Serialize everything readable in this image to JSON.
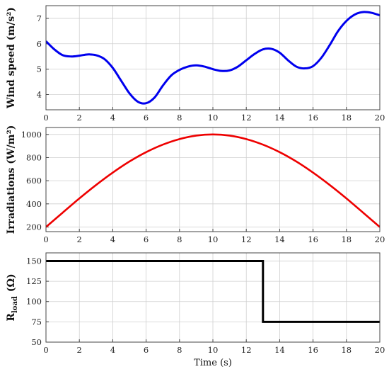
{
  "chart_data": [
    {
      "type": "line",
      "ylabel": "Wind speed (m/s²)",
      "xlabel": "",
      "xlim": [
        0,
        20
      ],
      "ylim": [
        3.4,
        7.5
      ],
      "xticks": [
        "0",
        "2",
        "4",
        "6",
        "8",
        "10",
        "12",
        "14",
        "16",
        "18",
        "20"
      ],
      "yticks": [
        "4",
        "5",
        "6",
        "7"
      ],
      "grid": true,
      "series": [
        {
          "color": "#0000ee",
          "x": [
            0,
            0.5,
            1,
            1.5,
            2,
            2.5,
            3,
            3.5,
            4,
            4.5,
            5,
            5.5,
            6,
            6.5,
            7,
            7.5,
            8,
            8.5,
            9,
            9.5,
            10,
            10.5,
            11,
            11.5,
            12,
            12.5,
            13,
            13.5,
            14,
            14.5,
            15,
            15.5,
            16,
            16.5,
            17,
            17.5,
            18,
            18.5,
            19,
            19.5,
            20
          ],
          "y": [
            6.1,
            5.78,
            5.55,
            5.5,
            5.53,
            5.58,
            5.55,
            5.4,
            5.05,
            4.55,
            4.05,
            3.72,
            3.66,
            3.88,
            4.35,
            4.75,
            4.97,
            5.1,
            5.15,
            5.1,
            5.0,
            4.93,
            4.95,
            5.1,
            5.35,
            5.6,
            5.78,
            5.8,
            5.65,
            5.35,
            5.1,
            5.03,
            5.12,
            5.45,
            5.95,
            6.5,
            6.9,
            7.15,
            7.25,
            7.22,
            7.12
          ]
        }
      ]
    },
    {
      "type": "line",
      "ylabel": "Irradiations (W/m²)",
      "xlabel": "",
      "xlim": [
        0,
        20
      ],
      "ylim": [
        160,
        1060
      ],
      "xticks": [
        "0",
        "2",
        "4",
        "6",
        "8",
        "10",
        "12",
        "14",
        "16",
        "18",
        "20"
      ],
      "yticks": [
        "200",
        "400",
        "600",
        "800",
        "1000"
      ],
      "grid": true,
      "series": [
        {
          "color": "#ee0000",
          "x": [
            0,
            1,
            2,
            3,
            4,
            5,
            6,
            7,
            8,
            9,
            10,
            11,
            12,
            13,
            14,
            15,
            16,
            17,
            18,
            19,
            20
          ],
          "y": [
            200,
            324,
            447,
            563,
            670,
            766,
            847,
            912,
            960,
            990,
            1000,
            990,
            960,
            912,
            847,
            766,
            670,
            563,
            447,
            324,
            200
          ]
        }
      ]
    },
    {
      "type": "line",
      "ylabel": "R",
      "ylabel_subscript": "load",
      "ylabel_unit": "(Ω)",
      "xlabel": "Time (s)",
      "xlim": [
        0,
        20
      ],
      "ylim": [
        50,
        160
      ],
      "xticks": [
        "0",
        "2",
        "4",
        "6",
        "8",
        "10",
        "12",
        "14",
        "16",
        "18",
        "20"
      ],
      "yticks": [
        "50",
        "75",
        "100",
        "125",
        "150"
      ],
      "grid": true,
      "series": [
        {
          "color": "#000000",
          "x": [
            0,
            13,
            13,
            20
          ],
          "y": [
            150,
            150,
            75,
            75
          ]
        }
      ]
    }
  ]
}
